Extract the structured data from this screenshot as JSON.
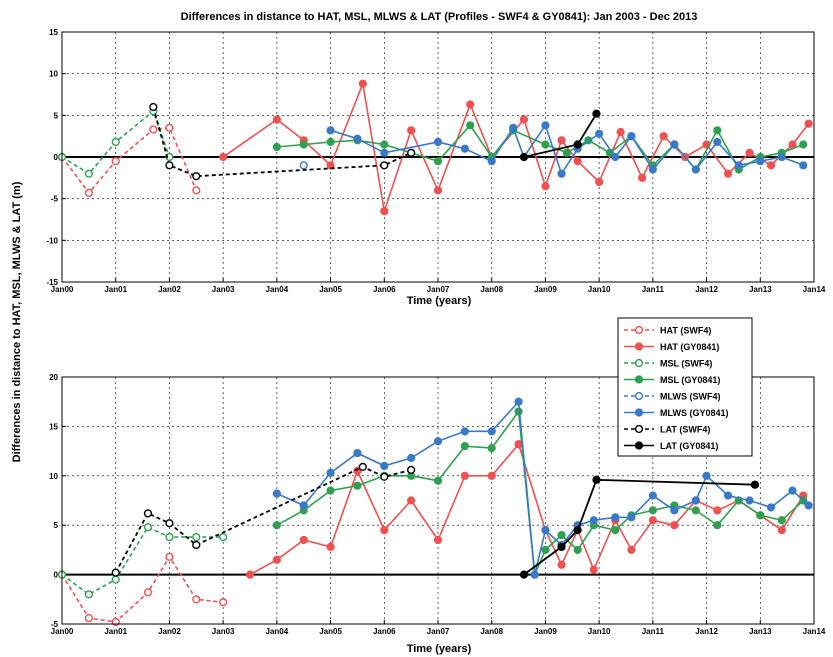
{
  "title": "Differences in distance to HAT, MSL, MLWS & LAT (Profiles - SWF4 & GY0841): Jan 2003 - Dec 2013",
  "ylabel": "Differences in distance to HAT, MSL, MLWS & LAT (m)",
  "colors": {
    "HAT": "#f05050",
    "MSL": "#30a050",
    "MLWS": "#3a78c8",
    "LAT": "#000000"
  },
  "legend": [
    {
      "label": "HAT (SWF4)",
      "group": "HAT",
      "dashed": true
    },
    {
      "label": "HAT (GY0841)",
      "group": "HAT",
      "dashed": false
    },
    {
      "label": "MSL (SWF4)",
      "group": "MSL",
      "dashed": true
    },
    {
      "label": "MSL (GY0841)",
      "group": "MSL",
      "dashed": false
    },
    {
      "label": "MLWS (SWF4)",
      "group": "MLWS",
      "dashed": true
    },
    {
      "label": "MLWS (GY0841)",
      "group": "MLWS",
      "dashed": false
    },
    {
      "label": "LAT (SWF4)",
      "group": "LAT",
      "dashed": true
    },
    {
      "label": "LAT (GY0841)",
      "group": "LAT",
      "dashed": false
    }
  ],
  "chart_data": [
    {
      "type": "line",
      "xlabel": "Time (years)",
      "xticks": [
        "Jan00",
        "Jan01",
        "Jan02",
        "Jan03",
        "Jan04",
        "Jan05",
        "Jan06",
        "Jan07",
        "Jan08",
        "Jan09",
        "Jan10",
        "Jan11",
        "Jan12",
        "Jan13",
        "Jan14"
      ],
      "xlim": [
        0,
        14
      ],
      "ylim": [
        -15,
        15
      ],
      "yticks": [
        -15,
        -10,
        -5,
        0,
        5,
        10,
        15
      ],
      "grid": true,
      "series": [
        {
          "name": "HAT (SWF4)",
          "group": "HAT",
          "dashed": true,
          "x": [
            0,
            0.5,
            1.0,
            1.7,
            2.0,
            2.5
          ],
          "y": [
            0,
            -4.3,
            -0.5,
            3.3,
            3.5,
            -4.0
          ]
        },
        {
          "name": "HAT (GY0841)",
          "group": "HAT",
          "dashed": false,
          "x": [
            3.0,
            4.0,
            4.5,
            5.0,
            5.6,
            6.0,
            6.5,
            7.0,
            7.6,
            8.0,
            8.6,
            9.0,
            9.3,
            9.6,
            10.0,
            10.4,
            10.8,
            11.2,
            11.6,
            12.0,
            12.4,
            12.8,
            13.2,
            13.6,
            13.9
          ],
          "y": [
            0,
            4.5,
            2.0,
            -1.0,
            8.8,
            -6.5,
            3.2,
            -4.0,
            6.3,
            0,
            4.5,
            -3.5,
            2.0,
            -0.5,
            -3.0,
            3.0,
            -2.5,
            2.5,
            0,
            1.5,
            -2.0,
            0.5,
            -1.0,
            1.5,
            4.0
          ]
        },
        {
          "name": "MSL (SWF4)",
          "group": "MSL",
          "dashed": true,
          "x": [
            0,
            0.5,
            1.0,
            1.7,
            2.0
          ],
          "y": [
            0,
            -2.0,
            1.8,
            5.5,
            0
          ]
        },
        {
          "name": "MSL (GY0841)",
          "group": "MSL",
          "dashed": false,
          "x": [
            4.0,
            4.5,
            5.0,
            5.5,
            6.0,
            7.0,
            7.6,
            8.0,
            8.4,
            9.0,
            9.4,
            9.8,
            10.2,
            10.6,
            11.0,
            11.4,
            11.8,
            12.2,
            12.6,
            13.0,
            13.4,
            13.8
          ],
          "y": [
            1.2,
            1.5,
            1.8,
            2.0,
            1.5,
            -0.5,
            3.8,
            0,
            3.2,
            1.5,
            0.5,
            2.0,
            0.5,
            2.5,
            -1.0,
            1.5,
            -1.5,
            3.2,
            -1.5,
            0,
            0.5,
            1.5
          ]
        },
        {
          "name": "MLWS (SWF4)",
          "group": "MLWS",
          "dashed": true,
          "x": [
            4.5
          ],
          "y": [
            -1.0
          ]
        },
        {
          "name": "MLWS (GY0841)",
          "group": "MLWS",
          "dashed": false,
          "x": [
            5.0,
            5.5,
            6.0,
            7.0,
            7.5,
            8.0,
            8.4,
            8.6,
            9.0,
            9.3,
            9.6,
            10.0,
            10.3,
            10.6,
            11.0,
            11.4,
            11.8,
            12.2,
            12.6,
            13.0,
            13.4,
            13.8
          ],
          "y": [
            3.2,
            2.2,
            0.5,
            1.8,
            1.0,
            -0.5,
            3.5,
            0,
            3.8,
            -2.0,
            1.0,
            2.8,
            0,
            2.5,
            -1.5,
            1.5,
            -1.5,
            1.8,
            -1.0,
            -0.5,
            0,
            -1.0
          ]
        },
        {
          "name": "LAT (SWF4)",
          "group": "LAT",
          "dashed": true,
          "x": [
            1.7,
            2.0,
            2.5,
            6.0,
            6.5
          ],
          "y": [
            6.0,
            -1.0,
            -2.3,
            -1.0,
            0.5
          ]
        },
        {
          "name": "LAT (GY0841)",
          "group": "LAT",
          "dashed": false,
          "x": [
            8.6,
            9.6,
            9.95
          ],
          "y": [
            0,
            1.5,
            5.2
          ]
        }
      ]
    },
    {
      "type": "line",
      "xlabel": "Time (years)",
      "xticks": [
        "Jan00",
        "Jan01",
        "Jan02",
        "Jan03",
        "Jan04",
        "Jan05",
        "Jan06",
        "Jan07",
        "Jan08",
        "Jan09",
        "Jan10",
        "Jan11",
        "Jan12",
        "Jan13",
        "Jan14"
      ],
      "xlim": [
        0,
        14
      ],
      "ylim": [
        -5,
        20
      ],
      "yticks": [
        -5,
        0,
        5,
        10,
        15,
        20
      ],
      "grid": true,
      "series": [
        {
          "name": "HAT (SWF4)",
          "group": "HAT",
          "dashed": true,
          "x": [
            0,
            0.5,
            1.0,
            1.6,
            2.0,
            2.5,
            3.0
          ],
          "y": [
            0,
            -4.4,
            -4.8,
            -1.8,
            1.8,
            -2.5,
            -2.8
          ]
        },
        {
          "name": "HAT (GY0841)",
          "group": "HAT",
          "dashed": false,
          "x": [
            3.5,
            4.0,
            4.5,
            5.0,
            5.5,
            6.0,
            6.5,
            7.0,
            7.5,
            8.0,
            8.5,
            9.0,
            9.3,
            9.6,
            9.9,
            10.3,
            10.6,
            11.0,
            11.4,
            11.8,
            12.2,
            12.6,
            13.0,
            13.4,
            13.8
          ],
          "y": [
            0,
            1.5,
            3.5,
            2.8,
            10.5,
            4.5,
            7.5,
            3.5,
            10.0,
            10.0,
            13.2,
            4.5,
            1.0,
            4.5,
            0.5,
            5.5,
            2.5,
            5.5,
            5.0,
            7.5,
            6.5,
            7.5,
            6.0,
            4.5,
            8.0
          ]
        },
        {
          "name": "MSL (SWF4)",
          "group": "MSL",
          "dashed": true,
          "x": [
            0,
            0.5,
            1.0,
            1.6,
            2.0,
            2.5,
            3.0
          ],
          "y": [
            0,
            -2.0,
            -0.5,
            4.8,
            3.8,
            3.8,
            3.8
          ]
        },
        {
          "name": "MSL (GY0841)",
          "group": "MSL",
          "dashed": false,
          "x": [
            4.0,
            4.5,
            5.0,
            5.5,
            6.0,
            6.5,
            7.0,
            7.5,
            8.0,
            8.5,
            8.8,
            9.0,
            9.3,
            9.6,
            9.9,
            10.3,
            10.6,
            11.0,
            11.4,
            11.8,
            12.2,
            12.6,
            13.0,
            13.4,
            13.8
          ],
          "y": [
            5.0,
            6.5,
            8.5,
            9.0,
            10.0,
            10.0,
            9.5,
            13.0,
            12.8,
            16.5,
            0,
            2.5,
            4.0,
            2.5,
            5.0,
            4.5,
            6.0,
            6.5,
            7.0,
            6.5,
            5.0,
            7.5,
            6.0,
            5.5,
            7.5
          ]
        },
        {
          "name": "MLWS (SWF4)",
          "group": "MLWS",
          "dashed": true,
          "x": [],
          "y": []
        },
        {
          "name": "MLWS (GY0841)",
          "group": "MLWS",
          "dashed": false,
          "x": [
            4.0,
            4.5,
            5.0,
            5.5,
            6.0,
            6.5,
            7.0,
            7.5,
            8.0,
            8.5,
            8.8,
            9.0,
            9.3,
            9.6,
            9.9,
            10.3,
            10.6,
            11.0,
            11.4,
            11.8,
            12.0,
            12.4,
            12.8,
            13.2,
            13.6,
            13.9
          ],
          "y": [
            8.2,
            7.0,
            10.3,
            12.3,
            11.0,
            11.8,
            13.5,
            14.5,
            14.5,
            17.5,
            0,
            4.5,
            3.0,
            5.0,
            5.5,
            5.8,
            5.8,
            8.0,
            6.5,
            7.5,
            10.0,
            8.0,
            7.5,
            6.8,
            8.5,
            7.0
          ]
        },
        {
          "name": "LAT (SWF4)",
          "group": "LAT",
          "dashed": true,
          "x": [
            1.0,
            1.6,
            2.0,
            2.5,
            5.6,
            6.0,
            6.5
          ],
          "y": [
            0.2,
            6.2,
            5.2,
            3.0,
            10.9,
            9.9,
            10.6
          ]
        },
        {
          "name": "LAT (GY0841)",
          "group": "LAT",
          "dashed": false,
          "x": [
            8.6,
            9.3,
            9.6,
            9.95,
            12.9
          ],
          "y": [
            0,
            2.8,
            4.5,
            9.6,
            9.1
          ]
        }
      ]
    }
  ]
}
